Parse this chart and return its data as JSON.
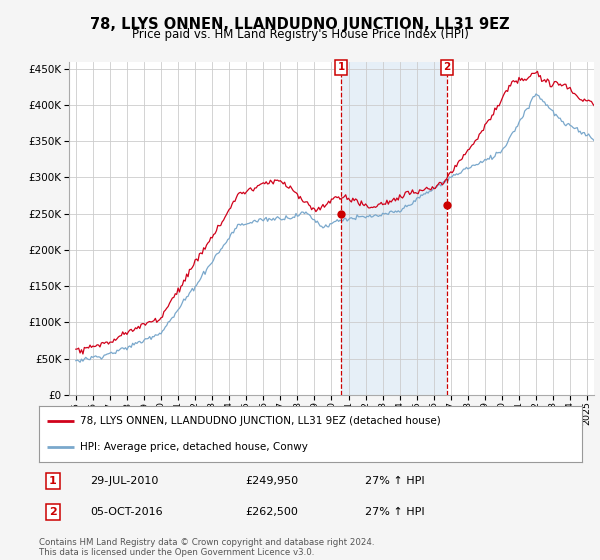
{
  "title": "78, LLYS ONNEN, LLANDUDNO JUNCTION, LL31 9EZ",
  "subtitle": "Price paid vs. HM Land Registry's House Price Index (HPI)",
  "y_values": [
    0,
    50000,
    100000,
    150000,
    200000,
    250000,
    300000,
    350000,
    400000,
    450000
  ],
  "ylim": [
    0,
    460000
  ],
  "xlim_start": 1994.6,
  "xlim_end": 2025.4,
  "sale1_x": 2010.57,
  "sale1_y": 249950,
  "sale1_label": "1",
  "sale1_date": "29-JUL-2010",
  "sale1_price": "£249,950",
  "sale1_hpi": "27% ↑ HPI",
  "sale2_x": 2016.76,
  "sale2_y": 262500,
  "sale2_label": "2",
  "sale2_date": "05-OCT-2016",
  "sale2_price": "£262,500",
  "sale2_hpi": "27% ↑ HPI",
  "legend_line1": "78, LLYS ONNEN, LLANDUDNO JUNCTION, LL31 9EZ (detached house)",
  "legend_line2": "HPI: Average price, detached house, Conwy",
  "footer1": "Contains HM Land Registry data © Crown copyright and database right 2024.",
  "footer2": "This data is licensed under the Open Government Licence v3.0.",
  "line_color_red": "#d0021b",
  "line_color_blue": "#7aa8cc",
  "bg_color": "#f5f5f5",
  "plot_bg": "#ffffff",
  "shade_color": "#dce9f5",
  "grid_color": "#cccccc",
  "annotation_box_color": "#cc0000",
  "title_fontsize": 10.5,
  "subtitle_fontsize": 8.5
}
